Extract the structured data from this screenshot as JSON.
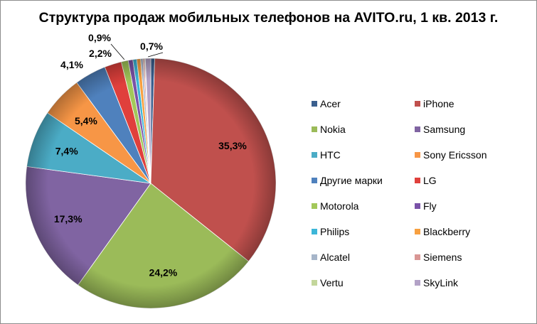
{
  "chart_data": {
    "type": "pie",
    "title": "Структура продаж мобильных телефонов на AVITO.ru, 1 кв. 2013 г.",
    "slices": [
      {
        "name": "Acer",
        "value": 0.5,
        "label": "",
        "color": "#3a5f8e"
      },
      {
        "name": "iPhone",
        "value": 35.3,
        "label": "35,3%",
        "color": "#c0504d"
      },
      {
        "name": "Nokia",
        "value": 24.2,
        "label": "24,2%",
        "color": "#9bbb59"
      },
      {
        "name": "Samsung",
        "value": 17.3,
        "label": "17,3%",
        "color": "#8064a2"
      },
      {
        "name": "HTC",
        "value": 7.4,
        "label": "7,4%",
        "color": "#4bacc6"
      },
      {
        "name": "Sony Ericsson",
        "value": 5.4,
        "label": "5,4%",
        "color": "#f79646"
      },
      {
        "name": "Другие марки",
        "value": 4.1,
        "label": "4,1%",
        "color": "#4f81bd"
      },
      {
        "name": "LG",
        "value": 2.2,
        "label": "2,2%",
        "color": "#e0403c"
      },
      {
        "name": "Motorola",
        "value": 0.9,
        "label": "0,9%",
        "color": "#a3c85a"
      },
      {
        "name": "Fly",
        "value": 0.6,
        "label": "",
        "color": "#7a52a8"
      },
      {
        "name": "Philips",
        "value": 0.5,
        "label": "",
        "color": "#3cb6d8"
      },
      {
        "name": "Blackberry",
        "value": 0.5,
        "label": "",
        "color": "#f7a040"
      },
      {
        "name": "Alcatel",
        "value": 0.3,
        "label": "",
        "color": "#a6b5c9"
      },
      {
        "name": "Siemens",
        "value": 0.2,
        "label": "",
        "color": "#d99694"
      },
      {
        "name": "Vertu",
        "value": 0.1,
        "label": "",
        "color": "#c3d69b"
      },
      {
        "name": "SkyLink",
        "value": 0.7,
        "label": "0,7%",
        "color": "#b3a2c7"
      }
    ],
    "legend_position": "right"
  }
}
